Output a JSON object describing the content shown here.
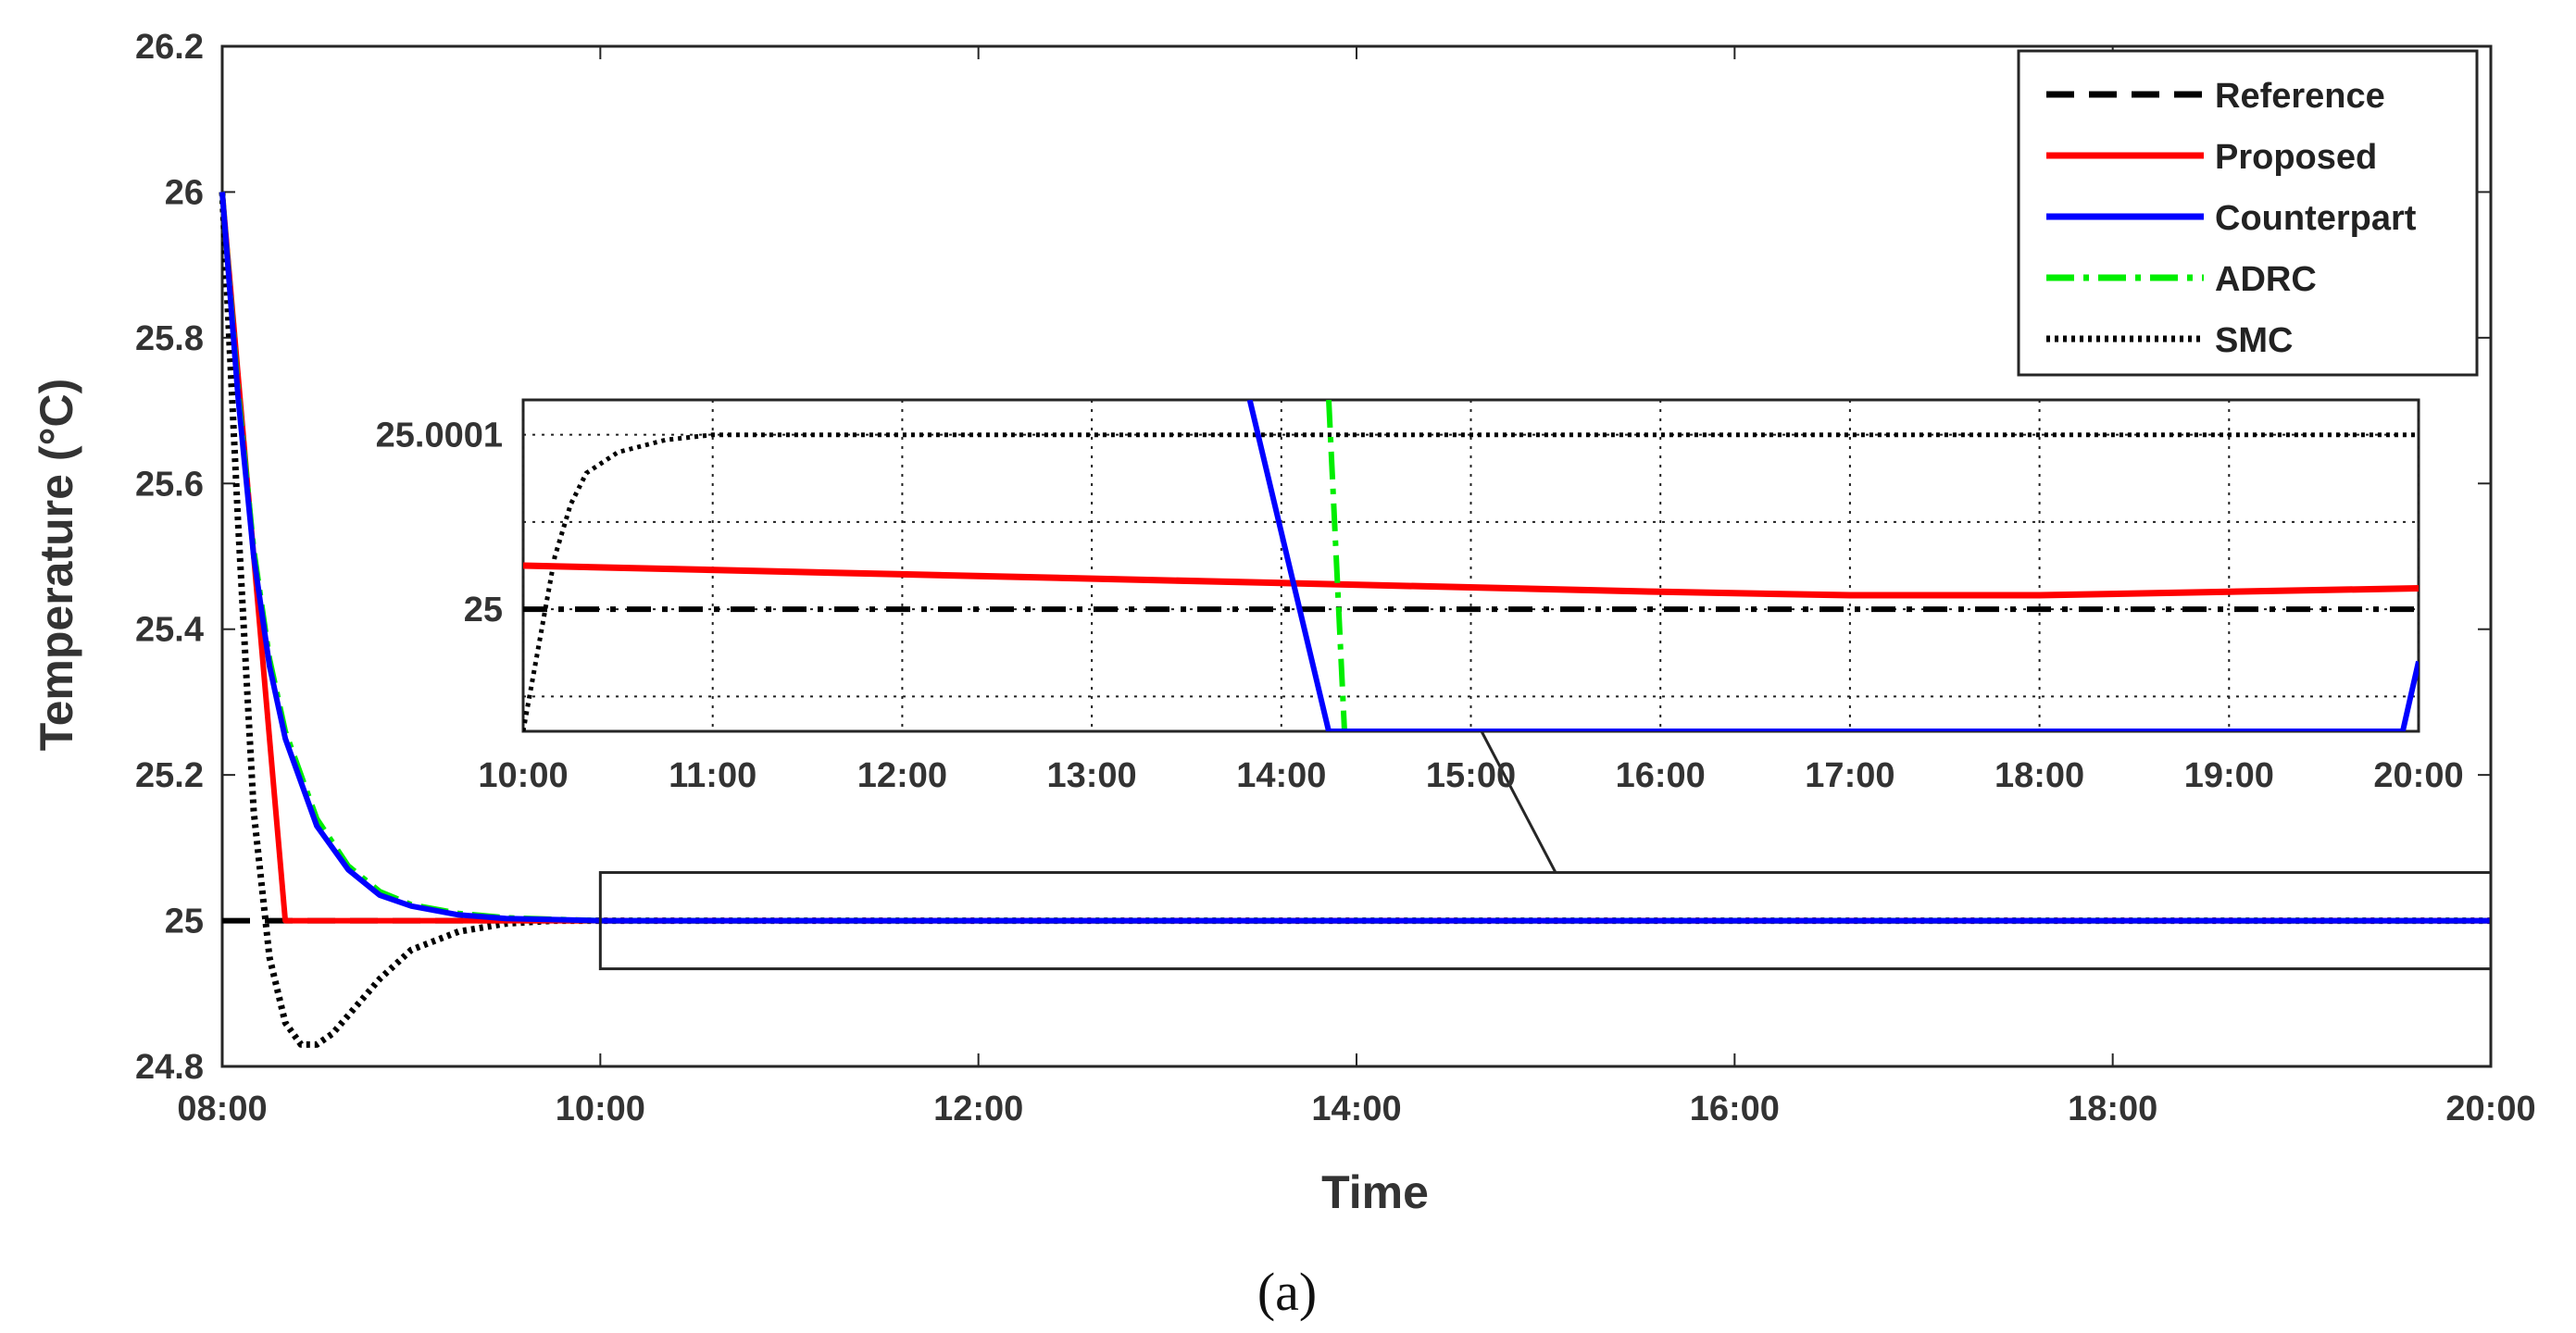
{
  "chart_data": {
    "type": "line",
    "xlabel": "Time",
    "ylabel": "Temperature (°C)",
    "caption": "(a)",
    "x_ticks": [
      "08:00",
      "10:00",
      "12:00",
      "14:00",
      "16:00",
      "18:00",
      "20:00"
    ],
    "y_ticks": [
      "24.8",
      "25",
      "25.2",
      "25.4",
      "25.6",
      "25.8",
      "26",
      "26.2"
    ],
    "xlim": [
      "08:00",
      "20:00"
    ],
    "ylim": [
      24.8,
      26.2
    ],
    "grid": false,
    "legend_position": "top-right",
    "series": [
      {
        "name": "Reference",
        "color": "#000000",
        "style": "dashed",
        "x": [
          "08:00",
          "20:00"
        ],
        "y": [
          25,
          25
        ]
      },
      {
        "name": "Proposed",
        "color": "#ff0000",
        "style": "solid",
        "x": [
          "08:00",
          "08:20",
          "20:00"
        ],
        "y": [
          26,
          25,
          25
        ]
      },
      {
        "name": "Counterpart",
        "color": "#0000ff",
        "style": "solid",
        "x": [
          "08:00",
          "08:05",
          "08:10",
          "08:15",
          "08:20",
          "08:30",
          "08:40",
          "08:50",
          "09:00",
          "09:15",
          "09:30",
          "10:00",
          "20:00"
        ],
        "y": [
          26,
          25.72,
          25.5,
          25.35,
          25.25,
          25.13,
          25.07,
          25.035,
          25.02,
          25.008,
          25.003,
          25,
          25
        ]
      },
      {
        "name": "ADRC",
        "color": "#00ee00",
        "style": "dashdot",
        "x": [
          "08:00",
          "08:05",
          "08:10",
          "08:15",
          "08:20",
          "08:30",
          "08:40",
          "08:50",
          "09:00",
          "09:15",
          "09:30",
          "10:00",
          "20:00"
        ],
        "y": [
          26,
          25.73,
          25.51,
          25.36,
          25.26,
          25.14,
          25.075,
          25.04,
          25.022,
          25.01,
          25.004,
          25,
          25
        ]
      },
      {
        "name": "SMC",
        "color": "#000000",
        "style": "dotted",
        "x": [
          "08:00",
          "08:05",
          "08:10",
          "08:15",
          "08:20",
          "08:25",
          "08:30",
          "08:35",
          "08:40",
          "08:50",
          "09:00",
          "09:15",
          "09:30",
          "09:45",
          "10:00",
          "20:00"
        ],
        "y": [
          26,
          25.55,
          25.15,
          24.95,
          24.86,
          24.83,
          24.83,
          24.845,
          24.87,
          24.92,
          24.96,
          24.985,
          24.996,
          25,
          25,
          25
        ]
      }
    ],
    "inset": {
      "x_ticks": [
        "10:00",
        "11:00",
        "12:00",
        "13:00",
        "14:00",
        "15:00",
        "16:00",
        "17:00",
        "18:00",
        "19:00",
        "20:00"
      ],
      "y_ticks": [
        "25",
        "25.0001"
      ],
      "xlim": [
        "10:00",
        "20:00"
      ],
      "ylim": [
        24.99993,
        25.00012
      ],
      "grid": true,
      "series": [
        {
          "name": "Reference",
          "x": [
            "10:00",
            "20:00"
          ],
          "y": [
            25,
            25
          ]
        },
        {
          "name": "Proposed",
          "x": [
            "10:00",
            "12:00",
            "14:00",
            "16:00",
            "17:00",
            "18:00",
            "20:00"
          ],
          "y": [
            25.000025,
            25.00002,
            25.000015,
            25.00001,
            25.000008,
            25.000008,
            25.000012
          ]
        },
        {
          "name": "Counterpart",
          "x": [
            "13:50",
            "14:15",
            "19:55",
            "20:00"
          ],
          "y": [
            25.00012,
            24.99993,
            24.99993,
            24.99997
          ]
        },
        {
          "name": "ADRC",
          "x": [
            "14:15",
            "14:20"
          ],
          "y": [
            25.00012,
            24.99993
          ]
        },
        {
          "name": "SMC",
          "x": [
            "10:00",
            "10:05",
            "10:10",
            "10:15",
            "10:20",
            "10:30",
            "10:45",
            "11:00",
            "20:00"
          ],
          "y": [
            24.99993,
            24.99998,
            25.00003,
            25.00006,
            25.000078,
            25.00009,
            25.000097,
            25.0001,
            25.0001
          ]
        }
      ]
    }
  }
}
